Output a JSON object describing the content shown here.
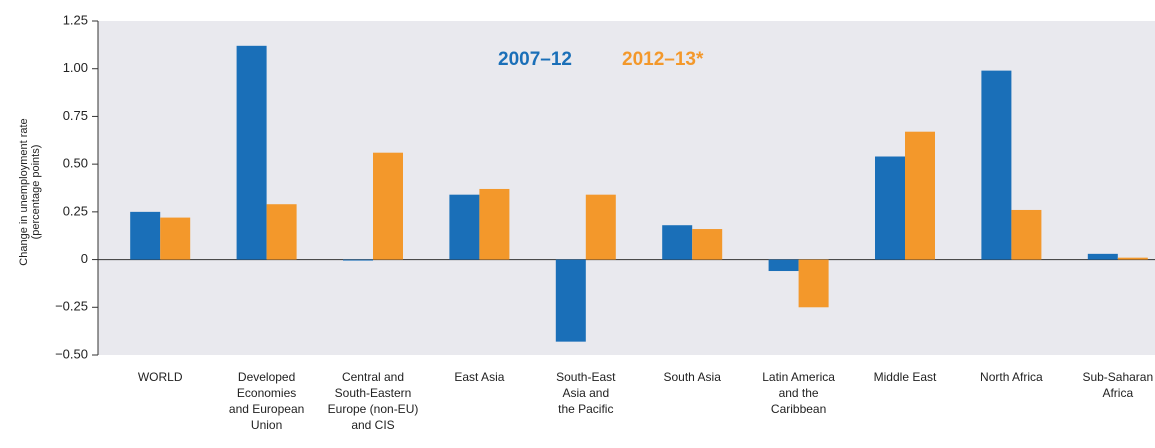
{
  "chart_data": {
    "type": "bar",
    "y_label": "Change in unemployment rate\n(percentage points)",
    "categories": [
      "WORLD",
      "Developed\nEconomies\nand European\nUnion",
      "Central and\nSouth-Eastern\nEurope (non-EU)\nand CIS",
      "East Asia",
      "South-East\nAsia and\nthe Pacific",
      "South Asia",
      "Latin America\nand the\nCaribbean",
      "Middle East",
      "North Africa",
      "Sub-Saharan\nAfrica"
    ],
    "series": [
      {
        "name": "2007–12",
        "color": "#1a6fb8",
        "values": [
          0.25,
          1.12,
          0.0,
          0.34,
          -0.43,
          0.18,
          -0.06,
          0.54,
          0.99,
          0.03
        ]
      },
      {
        "name": "2012–13*",
        "color": "#f3982b",
        "values": [
          0.22,
          0.29,
          0.56,
          0.37,
          0.34,
          0.16,
          -0.25,
          0.67,
          0.26,
          0.01
        ]
      }
    ],
    "ylim": [
      -0.5,
      1.25
    ],
    "yticks": [
      1.25,
      {
        "value": 1.0,
        "label": "1.00"
      },
      0.75,
      {
        "value": 0.5,
        "label": "0.50"
      },
      0.25,
      0,
      {
        "value": -0.25,
        "label": "−0.25"
      },
      {
        "value": -0.5,
        "label": "−0.50"
      }
    ]
  }
}
